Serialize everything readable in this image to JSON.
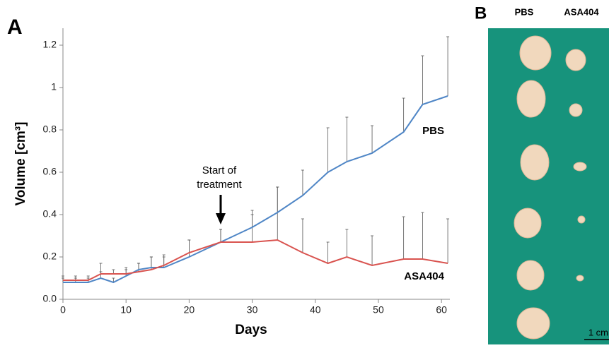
{
  "chart_data": {
    "type": "line",
    "panel_label": "A",
    "x_label": "Days",
    "y_label": "Volume [cm³]",
    "x": [
      0,
      2,
      4,
      6,
      8,
      10,
      12,
      14,
      16,
      20,
      25,
      30,
      34,
      38,
      42,
      45,
      49,
      54,
      57,
      61
    ],
    "series": [
      {
        "name": "PBS",
        "color": "#4f86c6",
        "values": [
          0.08,
          0.08,
          0.08,
          0.1,
          0.08,
          0.11,
          0.14,
          0.15,
          0.15,
          0.2,
          0.27,
          0.34,
          0.41,
          0.49,
          0.6,
          0.65,
          0.69,
          0.79,
          0.92,
          0.96
        ],
        "errors": [
          0.02,
          0.02,
          0.02,
          0.03,
          0.02,
          0.04,
          0.03,
          0.05,
          0.05,
          0.08,
          0.06,
          0.08,
          0.12,
          0.12,
          0.21,
          0.21,
          0.13,
          0.16,
          0.23,
          0.28
        ]
      },
      {
        "name": "ASA404",
        "color": "#d9534f",
        "values": [
          0.09,
          0.09,
          0.09,
          0.12,
          0.12,
          0.12,
          0.13,
          0.14,
          0.16,
          0.22,
          0.27,
          0.27,
          0.28,
          0.22,
          0.17,
          0.2,
          0.16,
          0.19,
          0.19,
          0.17
        ],
        "errors": [
          0.02,
          0.02,
          0.02,
          0.05,
          0.02,
          0.02,
          0.04,
          0.06,
          0.05,
          0.06,
          0.06,
          0.13,
          0.25,
          0.16,
          0.1,
          0.13,
          0.14,
          0.2,
          0.22,
          0.21
        ]
      }
    ],
    "annotation": {
      "lines": [
        "Start of",
        "treatment"
      ],
      "x": 25
    },
    "xlim": [
      0,
      62
    ],
    "xticks": [
      0,
      10,
      20,
      30,
      40,
      50,
      60
    ],
    "ylim": [
      0,
      1.3
    ],
    "yticks": [
      {
        "value": 0,
        "label": "0.0"
      },
      0.2,
      0.4,
      0.6,
      0.8,
      1,
      1.2
    ]
  },
  "photo": {
    "panel_label": "B",
    "columns": [
      "PBS",
      "ASA404"
    ],
    "scale_bar": "1 cm"
  }
}
